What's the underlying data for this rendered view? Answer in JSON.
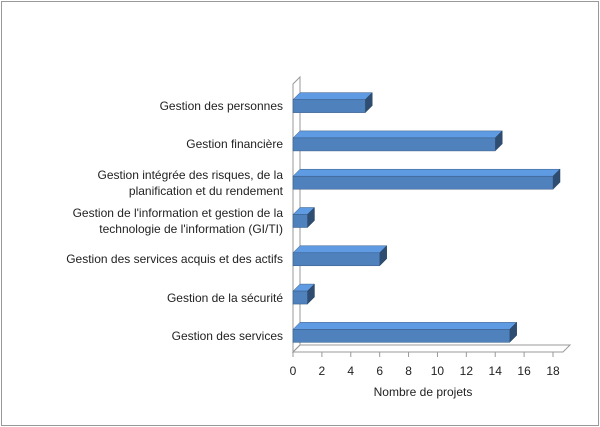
{
  "chart_data": {
    "type": "bar3d",
    "orientation": "horizontal",
    "categories": [
      "Gestion des personnes",
      "Gestion financière",
      "Gestion intégrée des risques, de la planification et du rendement",
      "Gestion de l'information et gestion de la technologie de l'information (GI/TI)",
      "Gestion des services acquis et des actifs",
      "Gestion de la sécurité",
      "Gestion des services"
    ],
    "values": [
      5,
      14,
      18,
      1,
      6,
      1,
      15
    ],
    "color": "#4f81bd",
    "xlim": [
      0,
      18
    ],
    "xticks": [
      0,
      2,
      4,
      6,
      8,
      10,
      12,
      14,
      16,
      18
    ],
    "xlabel": "Nombre de projets",
    "grid": false
  }
}
